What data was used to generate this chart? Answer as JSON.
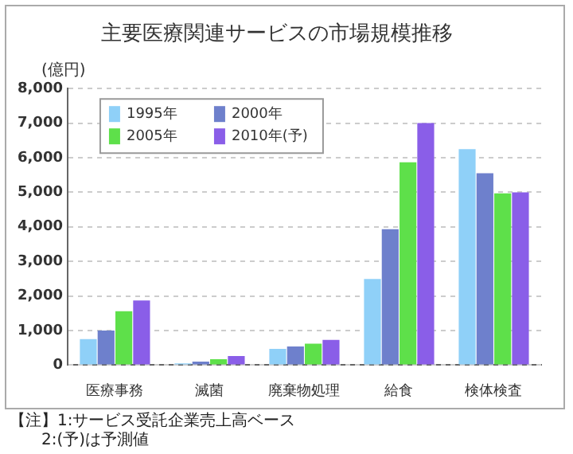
{
  "chart_data": {
    "type": "bar",
    "title": "主要医療関連サービスの市場規模推移",
    "ylabel": "(億円)",
    "categories": [
      "医療事務",
      "滅菌",
      "廃棄物処理",
      "給食",
      "検体検査"
    ],
    "series": [
      {
        "name": "1995年",
        "color": "#8fd0f8",
        "values": [
          750,
          50,
          470,
          2490,
          6250
        ]
      },
      {
        "name": "2000年",
        "color": "#6e80cc",
        "values": [
          1000,
          100,
          540,
          3930,
          5550
        ]
      },
      {
        "name": "2005年",
        "color": "#5ee04a",
        "values": [
          1560,
          170,
          620,
          5870,
          4970
        ]
      },
      {
        "name": "2010年(予)",
        "color": "#8a5ee8",
        "values": [
          1870,
          260,
          730,
          7000,
          5000
        ]
      }
    ],
    "ylim": [
      0,
      8000
    ],
    "yticks": [
      0,
      {
        "value": 1000,
        "label": "1,000"
      },
      {
        "value": 2000,
        "label": "2,000"
      },
      {
        "value": 3000,
        "label": "3,000"
      },
      {
        "value": 4000,
        "label": "4,000"
      },
      {
        "value": 5000,
        "label": "5,000"
      },
      {
        "value": 6000,
        "label": "6,000"
      },
      {
        "value": 7000,
        "label": "7,000"
      },
      {
        "value": 8000,
        "label": "8,000"
      }
    ],
    "grid": "y",
    "legend": "top left",
    "annotations": [
      "【注】1:サービス受託企業売上高ベース",
      "　　2:(予)は予測値"
    ]
  }
}
